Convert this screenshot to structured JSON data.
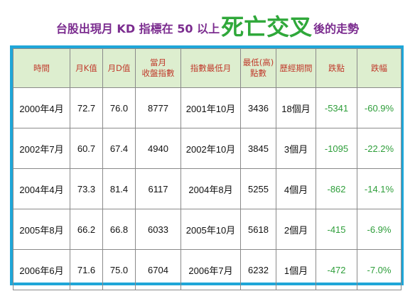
{
  "title": {
    "prefix": "台股出現月 KD 指標在 50 以上",
    "highlight": "死亡交叉",
    "suffix": "後的走勢"
  },
  "headers": [
    [
      "時間"
    ],
    [
      "月K值"
    ],
    [
      "月D值"
    ],
    [
      "當月",
      "收盤指數"
    ],
    [
      "指數最低月"
    ],
    [
      "最低(高)",
      "點數"
    ],
    [
      "歷經期間"
    ],
    [
      "跌點"
    ],
    [
      "跌幅"
    ]
  ],
  "rows": [
    [
      "2000年4月",
      "72.7",
      "76.0",
      "8777",
      "2001年10月",
      "3436",
      "18個月",
      "-5341",
      "-60.9%"
    ],
    [
      "2002年7月",
      "60.7",
      "67.4",
      "4940",
      "2002年10月",
      "3845",
      "3個月",
      "-1095",
      "-22.2%"
    ],
    [
      "2004年4月",
      "73.3",
      "81.4",
      "6117",
      "2004年8月",
      "5255",
      "4個月",
      "-862",
      "-14.1%"
    ],
    [
      "2005年8月",
      "66.2",
      "66.8",
      "6033",
      "2005年10月",
      "5618",
      "2個月",
      "-415",
      "-6.9%"
    ],
    [
      "2006年6月",
      "71.6",
      "75.0",
      "6704",
      "2006年7月",
      "6232",
      "1個月",
      "-472",
      "-7.0%"
    ]
  ],
  "colors": {
    "title": "#7b2c8f",
    "highlight": "#2fa83a",
    "header_text": "#c0392b",
    "header_bg": "#ddeecf",
    "frame": "#1fa6d8",
    "drop_text": "#2e9e3a"
  }
}
